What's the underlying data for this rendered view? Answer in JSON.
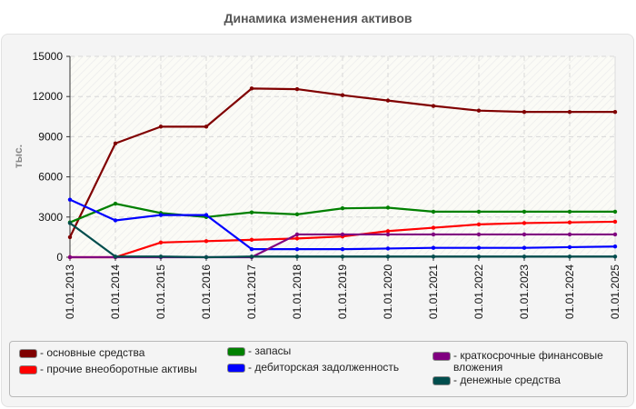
{
  "title": "Динамика изменения активов",
  "chart_data": {
    "type": "line",
    "title": "Динамика изменения активов",
    "xlabel": "",
    "ylabel": "тыс.",
    "ylim": [
      0,
      15000
    ],
    "yticks": [
      0,
      3000,
      6000,
      9000,
      12000,
      15000
    ],
    "grid": true,
    "legend_position": "bottom",
    "categories": [
      "01.01.2013",
      "01.01.2014",
      "01.01.2015",
      "01.01.2016",
      "01.01.2017",
      "01.01.2018",
      "01.01.2019",
      "01.01.2020",
      "01.01.2021",
      "01.01.2022",
      "01.01.2023",
      "01.01.2024",
      "01.01.2025"
    ],
    "series": [
      {
        "name": "основные средства",
        "color": "#800000",
        "values": [
          1500,
          8500,
          9750,
          9750,
          12600,
          12550,
          12100,
          11700,
          11300,
          10950,
          10850,
          10850,
          10850
        ]
      },
      {
        "name": "прочие внеоборотные активы",
        "color": "#ff0000",
        "values": [
          0,
          0,
          1100,
          1200,
          1300,
          1400,
          1550,
          1950,
          2200,
          2450,
          2550,
          2600,
          2650
        ]
      },
      {
        "name": "запасы",
        "color": "#008000",
        "values": [
          2600,
          4000,
          3300,
          3000,
          3350,
          3200,
          3650,
          3700,
          3400,
          3400,
          3400,
          3400,
          3400
        ]
      },
      {
        "name": "дебиторская задолженность",
        "color": "#0000ff",
        "values": [
          4300,
          2750,
          3150,
          3150,
          600,
          600,
          600,
          650,
          700,
          700,
          700,
          750,
          800
        ]
      },
      {
        "name": "краткосрочные финансовые вложения",
        "color": "#800080",
        "values": [
          0,
          0,
          0,
          0,
          0,
          1700,
          1700,
          1700,
          1700,
          1700,
          1700,
          1700,
          1700
        ]
      },
      {
        "name": "денежные средства",
        "color": "#004d4d",
        "values": [
          2550,
          50,
          50,
          0,
          50,
          50,
          50,
          50,
          50,
          50,
          50,
          50,
          50
        ]
      }
    ]
  },
  "legend": [
    {
      "label": "- основные средства",
      "color": "#800000"
    },
    {
      "label": "- прочие внеоборотные активы",
      "color": "#ff0000"
    },
    {
      "label": "- запасы",
      "color": "#008000"
    },
    {
      "label": "- дебиторская задолженность",
      "color": "#0000ff"
    },
    {
      "label": "- краткосрочные финансовые вложения",
      "color": "#800080"
    },
    {
      "label": "- денежные средства",
      "color": "#004d4d"
    }
  ]
}
